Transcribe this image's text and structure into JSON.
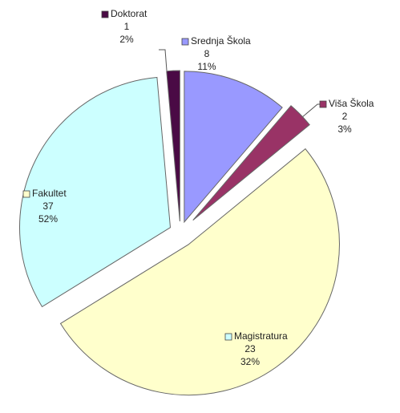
{
  "chart_data": {
    "type": "pie",
    "categories": [
      "Srednja Škola",
      "Viša Škola",
      "Fakultet",
      "Magistratura",
      "Doktorat"
    ],
    "values": [
      8,
      2,
      37,
      23,
      1
    ],
    "percent_labels": [
      "11%",
      "3%",
      "52%",
      "32%",
      "2%"
    ],
    "colors": [
      "#9999ff",
      "#993366",
      "#ffffcc",
      "#ccffff",
      "#4a0a45"
    ]
  }
}
